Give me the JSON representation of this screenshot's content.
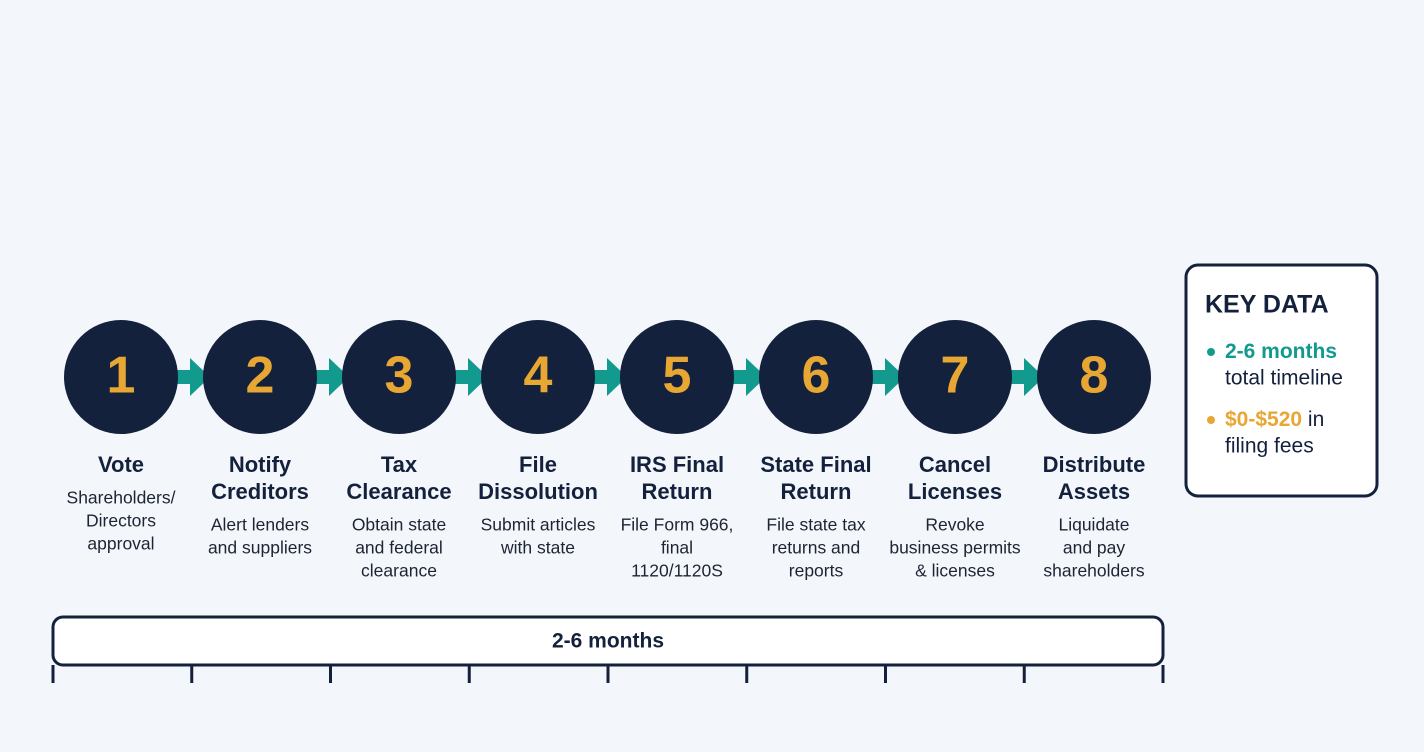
{
  "steps": [
    {
      "number": "1",
      "title": [
        "Vote"
      ],
      "description": [
        "Shareholders/",
        "Directors",
        "approval"
      ]
    },
    {
      "number": "2",
      "title": [
        "Notify",
        "Creditors"
      ],
      "description": [
        "Alert lenders",
        "and suppliers"
      ]
    },
    {
      "number": "3",
      "title": [
        "Tax",
        "Clearance"
      ],
      "description": [
        "Obtain state",
        "and federal",
        "clearance"
      ]
    },
    {
      "number": "4",
      "title": [
        "File",
        "Dissolution"
      ],
      "description": [
        "Submit articles",
        "with state"
      ]
    },
    {
      "number": "5",
      "title": [
        "IRS Final",
        "Return"
      ],
      "description": [
        "File Form 966,",
        "final",
        "1120/1120S"
      ]
    },
    {
      "number": "6",
      "title": [
        "State Final",
        "Return"
      ],
      "description": [
        "File state tax",
        "returns and",
        "reports"
      ]
    },
    {
      "number": "7",
      "title": [
        "Cancel",
        "Licenses"
      ],
      "description": [
        "Revoke",
        "business permits",
        "& licenses"
      ]
    },
    {
      "number": "8",
      "title": [
        "Distribute",
        "Assets"
      ],
      "description": [
        "Liquidate",
        "and pay",
        "shareholders"
      ]
    }
  ],
  "timeline": {
    "label": "2-6 months"
  },
  "key_data": {
    "title": "KEY DATA",
    "items": [
      {
        "highlight": "2-6 months",
        "rest": "",
        "line2": "total timeline"
      },
      {
        "highlight": "$0-$520",
        "rest": "in",
        "line2": "filing fees"
      }
    ]
  }
}
